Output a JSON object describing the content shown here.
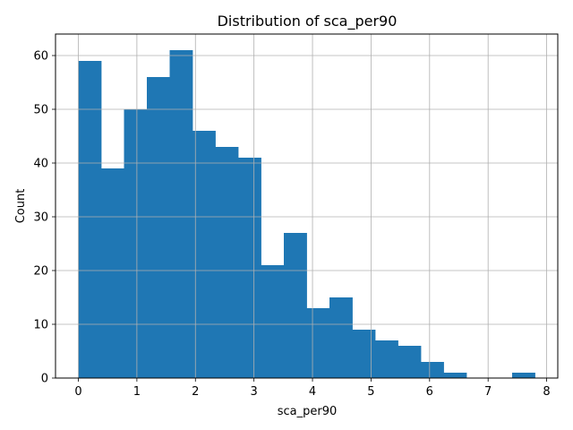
{
  "chart_data": {
    "type": "bar",
    "subtype": "histogram",
    "title": "Distribution of sca_per90",
    "xlabel": "sca_per90",
    "ylabel": "Count",
    "bin_start": 0.0,
    "bin_width": 0.39,
    "values": [
      59,
      39,
      50,
      56,
      61,
      46,
      43,
      41,
      21,
      27,
      13,
      15,
      9,
      7,
      6,
      3,
      1,
      0,
      0,
      1
    ],
    "xlim": [
      -0.39,
      8.19
    ],
    "ylim": [
      0,
      64
    ],
    "xticks": [
      0,
      1,
      2,
      3,
      4,
      5,
      6,
      7,
      8
    ],
    "xtick_labels": [
      "0",
      "1",
      "2",
      "3",
      "4",
      "5",
      "6",
      "7",
      "8"
    ],
    "yticks": [
      0,
      10,
      20,
      30,
      40,
      50,
      60
    ],
    "ytick_labels": [
      "0",
      "10",
      "20",
      "30",
      "40",
      "50",
      "60"
    ],
    "grid": true,
    "bar_color": "#1f77b4",
    "grid_color": "#b0b0b0"
  }
}
